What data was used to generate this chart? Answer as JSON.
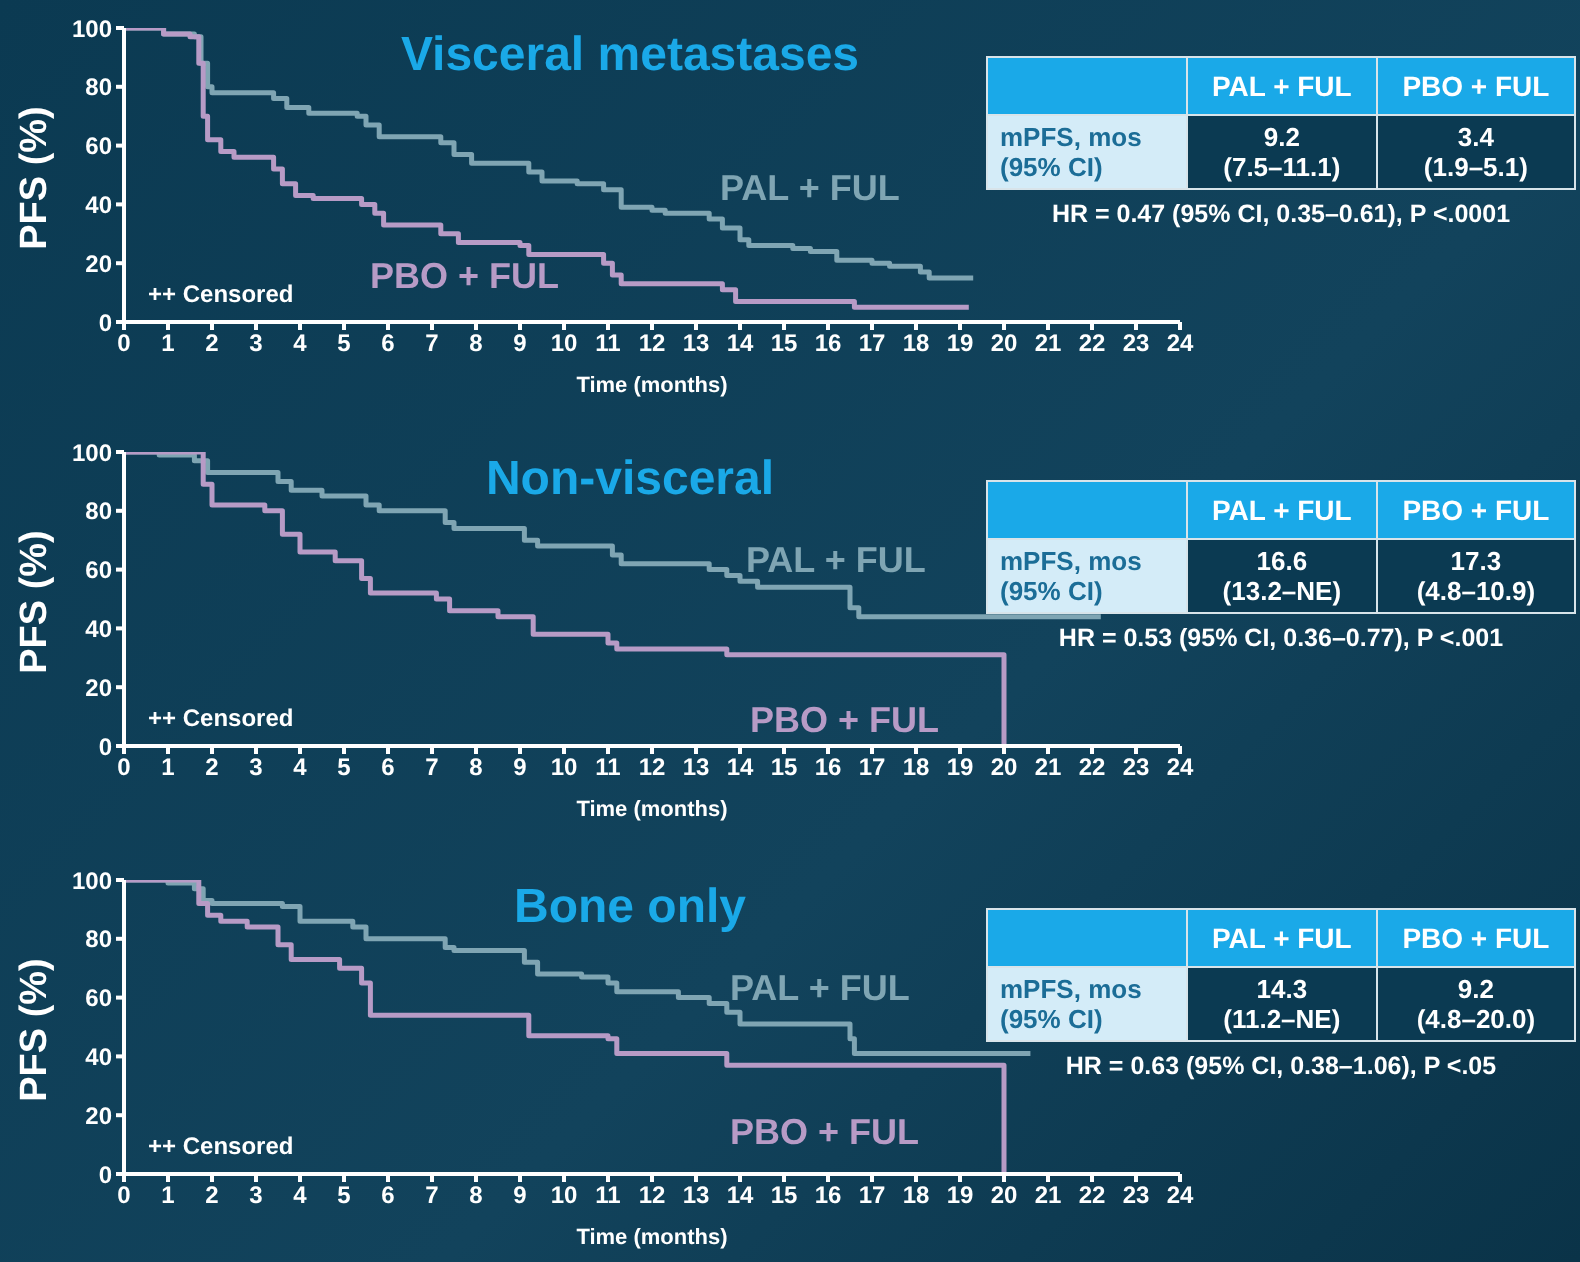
{
  "chart_data": [
    {
      "type": "step",
      "title": "Visceral metastases",
      "xlabel": "Time (months)",
      "ylabel": "PFS (%)",
      "xlim": [
        0,
        24
      ],
      "ylim": [
        0,
        100
      ],
      "xticks": [
        0,
        1,
        2,
        3,
        4,
        5,
        6,
        7,
        8,
        9,
        10,
        11,
        12,
        13,
        14,
        15,
        16,
        17,
        18,
        19,
        20,
        21,
        22,
        23,
        24
      ],
      "yticks": [
        0,
        20,
        40,
        60,
        80,
        100
      ],
      "annotations": [
        "PAL + FUL",
        "PBO + FUL",
        "mPFS, mos\n(95% CI)",
        "9.2\n(7.5–11.1)",
        "3.4\n(1.9–5.1)",
        "HR = 0.47 (95% CI, 0.35–0.61), P <.0001",
        "++ Censored"
      ],
      "series": [
        {
          "name": "PAL + FUL",
          "color": "#7fa5b3",
          "x": [
            0,
            0.9,
            1.6,
            1.75,
            1.9,
            2.0,
            3.4,
            3.7,
            4.2,
            5.3,
            5.5,
            5.8,
            7.2,
            7.5,
            7.9,
            9.2,
            9.5,
            10.3,
            10.9,
            11.3,
            12.0,
            12.3,
            13.3,
            13.6,
            14.0,
            14.2,
            15.2,
            15.6,
            16.2,
            17.0,
            17.4,
            18.1,
            18.3,
            19.3
          ],
          "values": [
            100,
            98,
            97,
            88,
            80,
            78,
            76,
            73,
            71,
            70,
            67,
            63,
            61,
            57,
            54,
            51,
            48,
            47,
            45,
            39,
            38,
            37,
            35,
            32,
            28,
            26,
            25,
            24,
            21,
            20,
            19,
            17,
            15,
            15
          ]
        },
        {
          "name": "PBO + FUL",
          "color": "#b79bc6",
          "x": [
            0,
            0.9,
            1.5,
            1.7,
            1.8,
            1.9,
            2.2,
            2.5,
            3.4,
            3.6,
            3.9,
            4.3,
            5.4,
            5.7,
            5.9,
            7.2,
            7.6,
            9.0,
            9.2,
            10.9,
            11.1,
            11.3,
            13.6,
            13.9,
            16.6,
            19.2
          ],
          "values": [
            100,
            98,
            97,
            88,
            70,
            62,
            58,
            56,
            52,
            47,
            43,
            42,
            40,
            37,
            33,
            30,
            27,
            26,
            23,
            20,
            16,
            13,
            11,
            7,
            5,
            5
          ]
        }
      ]
    },
    {
      "type": "step",
      "title": "Non-visceral",
      "xlabel": "Time (months)",
      "ylabel": "PFS (%)",
      "xlim": [
        0,
        24
      ],
      "ylim": [
        0,
        100
      ],
      "xticks": [
        0,
        1,
        2,
        3,
        4,
        5,
        6,
        7,
        8,
        9,
        10,
        11,
        12,
        13,
        14,
        15,
        16,
        17,
        18,
        19,
        20,
        21,
        22,
        23,
        24
      ],
      "yticks": [
        0,
        20,
        40,
        60,
        80,
        100
      ],
      "annotations": [
        "PAL + FUL",
        "PBO + FUL",
        "mPFS, mos\n(95% CI)",
        "16.6\n(13.2–NE)",
        "17.3\n(4.8–10.9)",
        "HR = 0.53 (95% CI, 0.36–0.77), P <.001",
        "++ Censored"
      ],
      "series": [
        {
          "name": "PAL + FUL",
          "color": "#7fa5b3",
          "x": [
            0,
            0.8,
            1.6,
            1.9,
            3.5,
            3.8,
            4.5,
            5.5,
            5.8,
            7.3,
            7.5,
            9.1,
            9.4,
            11.1,
            11.3,
            13.3,
            13.7,
            14.0,
            14.4,
            16.5,
            16.7,
            22.2
          ],
          "values": [
            100,
            99,
            97,
            93,
            90,
            87,
            85,
            82,
            80,
            76,
            74,
            70,
            68,
            65,
            62,
            60,
            58,
            56,
            54,
            47,
            44,
            44
          ]
        },
        {
          "name": "PBO + FUL",
          "color": "#b79bc6",
          "x": [
            0,
            1.6,
            1.8,
            2.0,
            3.2,
            3.6,
            4.0,
            4.8,
            5.4,
            5.6,
            7.1,
            7.4,
            8.5,
            9.3,
            11.0,
            11.2,
            13.7,
            20.0
          ],
          "values": [
            100,
            100,
            89,
            82,
            80,
            72,
            66,
            63,
            57,
            52,
            50,
            46,
            44,
            38,
            35,
            33,
            31,
            0
          ]
        }
      ]
    },
    {
      "type": "step",
      "title": "Bone only",
      "xlabel": "Time (months)",
      "ylabel": "PFS (%)",
      "xlim": [
        0,
        24
      ],
      "ylim": [
        0,
        100
      ],
      "xticks": [
        0,
        1,
        2,
        3,
        4,
        5,
        6,
        7,
        8,
        9,
        10,
        11,
        12,
        13,
        14,
        15,
        16,
        17,
        18,
        19,
        20,
        21,
        22,
        23,
        24
      ],
      "yticks": [
        0,
        20,
        40,
        60,
        80,
        100
      ],
      "annotations": [
        "PAL + FUL",
        "PBO + FUL",
        "mPFS, mos\n(95% CI)",
        "14.3\n(11.2–NE)",
        "9.2\n(4.8–20.0)",
        "HR = 0.63 (95% CI, 0.38–1.06), P <.05",
        "++ Censored"
      ],
      "series": [
        {
          "name": "PAL + FUL",
          "color": "#7fa5b3",
          "x": [
            0,
            1.0,
            1.6,
            1.8,
            2.0,
            3.6,
            4.0,
            5.2,
            5.5,
            7.3,
            7.5,
            9.1,
            9.4,
            10.4,
            11.0,
            11.2,
            12.6,
            13.3,
            13.7,
            14.0,
            16.5,
            16.6,
            20.6
          ],
          "values": [
            100,
            99,
            97,
            93,
            92,
            91,
            86,
            84,
            80,
            77,
            76,
            72,
            68,
            67,
            65,
            62,
            60,
            58,
            55,
            51,
            46,
            41,
            41
          ]
        },
        {
          "name": "PBO + FUL",
          "color": "#b79bc6",
          "x": [
            0,
            1.7,
            1.9,
            2.2,
            2.8,
            3.5,
            3.8,
            4.9,
            5.4,
            5.6,
            9.2,
            11.0,
            11.2,
            13.7,
            20.0
          ],
          "values": [
            100,
            92,
            88,
            86,
            84,
            78,
            73,
            70,
            65,
            54,
            47,
            46,
            41,
            37,
            0
          ]
        }
      ]
    }
  ]
}
